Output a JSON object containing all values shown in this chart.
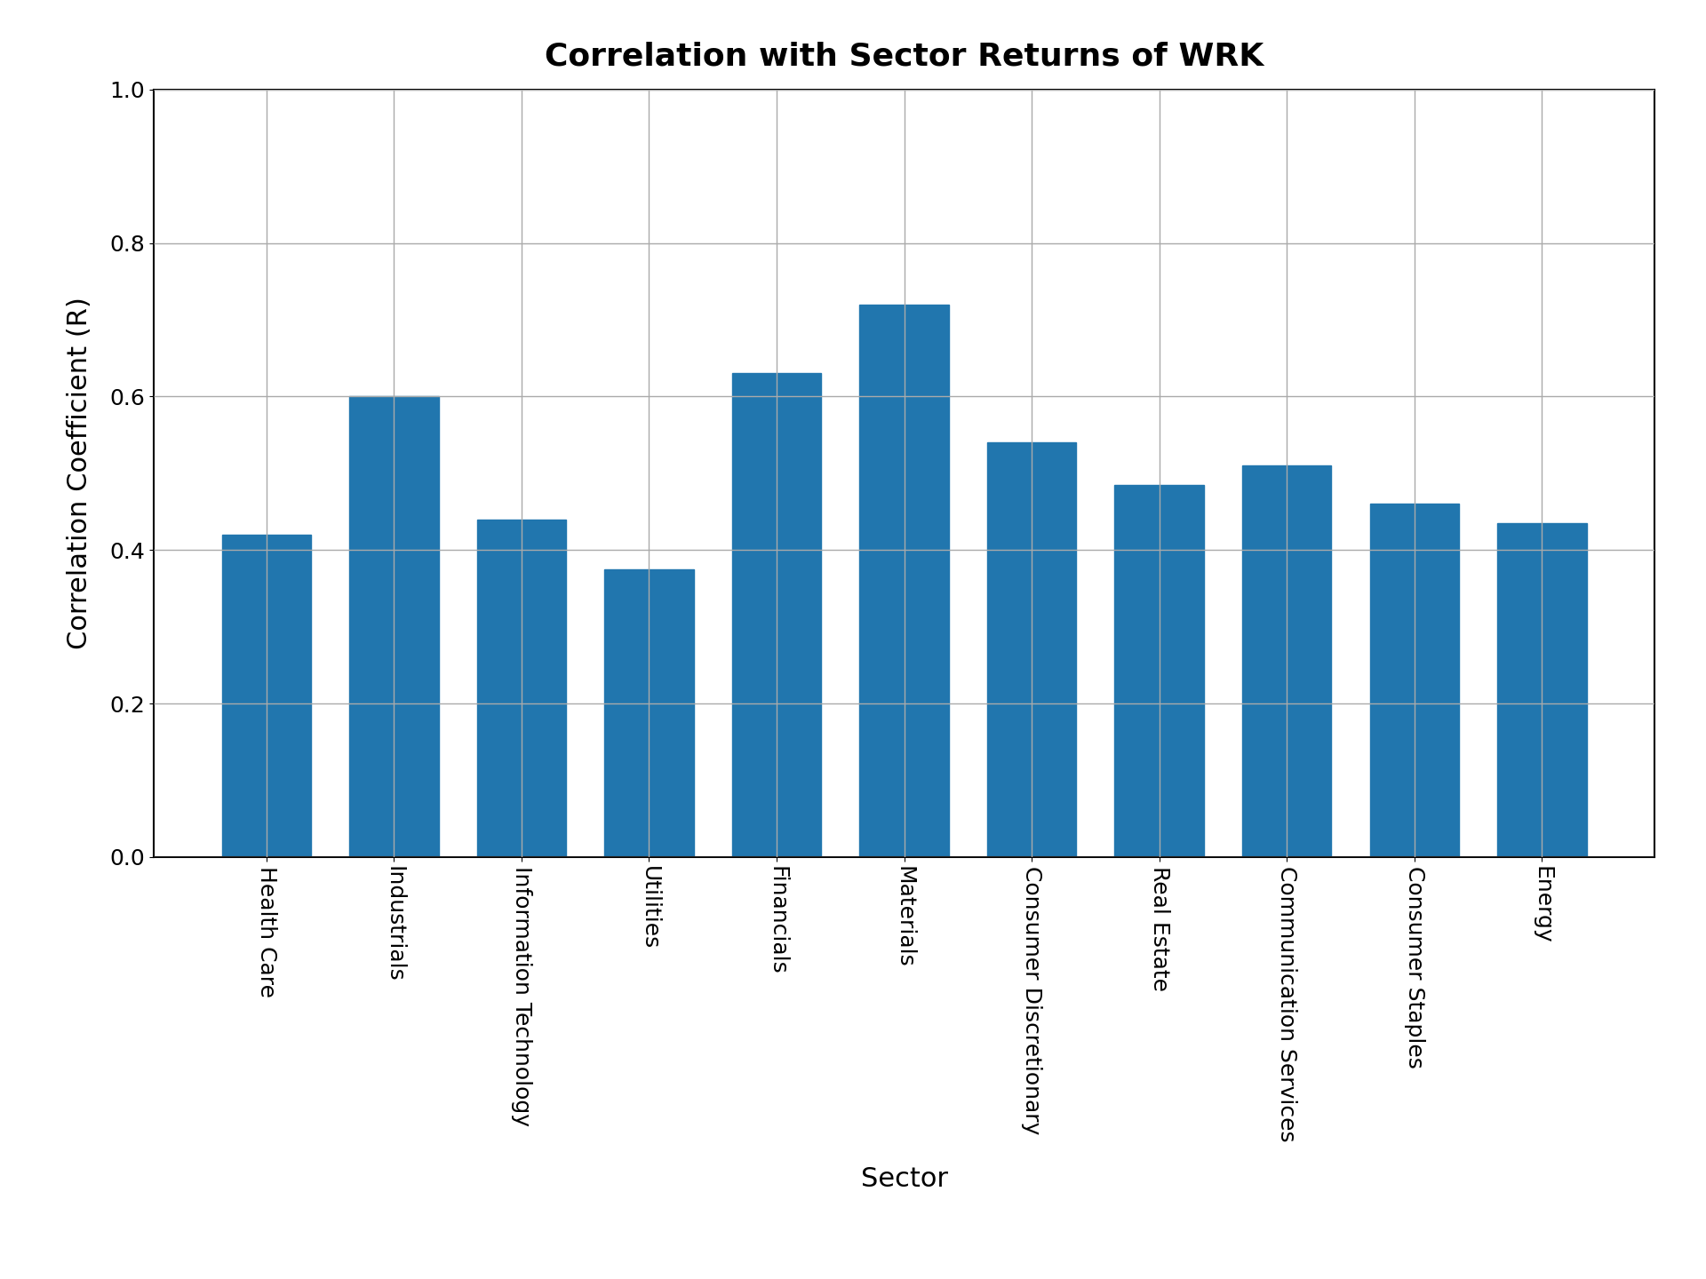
{
  "title": "Correlation with Sector Returns of WRK",
  "xlabel": "Sector",
  "ylabel": "Correlation Coefficient (R)",
  "categories": [
    "Health Care",
    "Industrials",
    "Information Technology",
    "Utilities",
    "Financials",
    "Materials",
    "Consumer Discretionary",
    "Real Estate",
    "Communication Services",
    "Consumer Staples",
    "Energy"
  ],
  "values": [
    0.42,
    0.6,
    0.44,
    0.375,
    0.63,
    0.72,
    0.54,
    0.485,
    0.51,
    0.46,
    0.435
  ],
  "bar_color": "#2176ae",
  "ylim": [
    0.0,
    1.0
  ],
  "yticks": [
    0.0,
    0.2,
    0.4,
    0.6,
    0.8,
    1.0
  ],
  "title_fontsize": 26,
  "axis_label_fontsize": 22,
  "tick_fontsize": 18,
  "background_color": "#ffffff",
  "grid_color": "#aaaaaa"
}
